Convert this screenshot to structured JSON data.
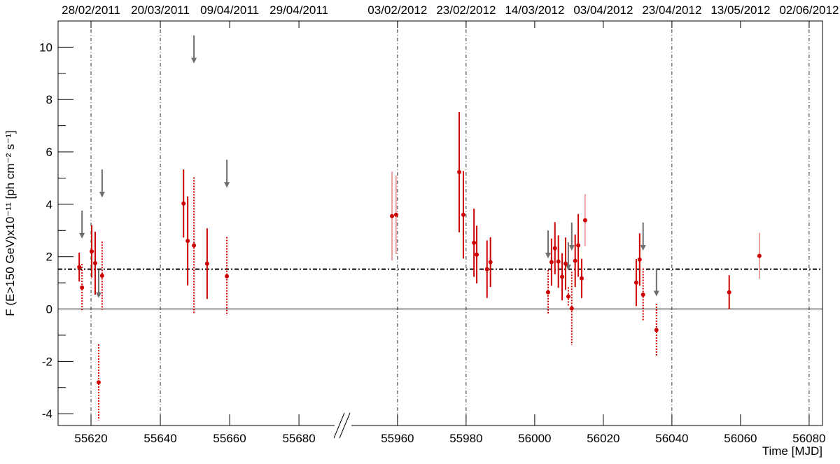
{
  "chart_data": {
    "type": "errorbar",
    "y_label": "F (E>150 GeV)x10⁻¹¹ [ph cm⁻² s⁻¹]",
    "x_label": "Time [MJD]",
    "xlim": [
      [
        55610.5,
        55692.1
      ],
      [
        55943.5,
        56083.9
      ]
    ],
    "xticks": [
      55620,
      55640,
      55660,
      55680,
      55960,
      55980,
      56000,
      56020,
      56040,
      56060,
      56080
    ],
    "ylim": [
      -4.45,
      11
    ],
    "yticks": [
      -4,
      -2,
      0,
      2,
      4,
      6,
      8,
      10
    ],
    "top_ticks": [
      {
        "value": 55620,
        "label": "28/02/2011"
      },
      {
        "value": 55640,
        "label": "20/03/2011"
      },
      {
        "value": 55660,
        "label": "09/04/2011"
      },
      {
        "value": 55680,
        "label": "29/04/2011"
      },
      {
        "value": 55960,
        "label": "03/02/2012"
      },
      {
        "value": 55980,
        "label": "23/02/2012"
      },
      {
        "value": 56000,
        "label": "14/03/2012"
      },
      {
        "value": 56020,
        "label": "03/04/2012"
      },
      {
        "value": 56040,
        "label": "23/04/2012"
      },
      {
        "value": 56060,
        "label": "13/05/2012"
      },
      {
        "value": 56080,
        "label": "02/06/2012"
      }
    ],
    "date_lines": [
      55620,
      55640,
      55960,
      55980,
      56040,
      56080
    ],
    "reference_line": 1.52,
    "points": {
      "color": "#cc0000",
      "x": [
        55616.6,
        55617.4,
        55620.2,
        55621.2,
        55622.2,
        55623.2,
        55646.7,
        55647.9,
        55649.7,
        55653.5,
        55659.2,
        55958.4,
        55959.6,
        55978.0,
        55979.2,
        55982.3,
        55983.1,
        55986.1,
        55987.1,
        56003.9,
        56004.9,
        56005.9,
        56006.9,
        56008.0,
        56009.0,
        56009.8,
        56010.8,
        56011.8,
        56012.7,
        56013.7,
        56014.7,
        56029.6,
        56030.6,
        56031.6,
        56035.5,
        56056.7,
        56065.5
      ],
      "values": [
        1.6,
        0.82,
        2.2,
        1.75,
        -2.8,
        1.27,
        4.03,
        2.6,
        2.43,
        1.73,
        1.25,
        3.55,
        3.6,
        5.23,
        3.6,
        2.53,
        2.08,
        1.52,
        1.79,
        0.64,
        1.79,
        2.32,
        1.81,
        1.23,
        1.73,
        0.48,
        0.02,
        1.84,
        2.43,
        1.17,
        3.39,
        1.01,
        1.89,
        0.55,
        -0.8,
        0.64,
        2.03
      ],
      "errors": [
        0.55,
        0.9,
        1.0,
        1.2,
        1.45,
        1.3,
        1.3,
        1.7,
        2.6,
        1.35,
        1.5,
        1.7,
        1.5,
        2.3,
        1.67,
        1.3,
        1.1,
        1.1,
        0.95,
        0.85,
        0.9,
        1.0,
        1.0,
        0.9,
        1.0,
        0.35,
        1.4,
        1.0,
        1.2,
        0.75,
        1.0,
        0.9,
        1.0,
        1.0,
        1.0,
        0.65,
        0.88
      ],
      "error_style": [
        "solid",
        "dotted",
        "solid",
        "solid",
        "dotted",
        "dotted",
        "solid",
        "solid",
        "dotted",
        "solid",
        "dotted",
        "thin",
        "thin",
        "solid",
        "solid",
        "solid",
        "solid",
        "solid",
        "solid",
        "dotted",
        "solid",
        "solid",
        "solid",
        "solid",
        "solid",
        "dotted",
        "dotted",
        "solid",
        "solid",
        "solid",
        "thin",
        "solid",
        "solid",
        "dotted",
        "dotted",
        "solid",
        "thin"
      ]
    },
    "upper_limits": {
      "color": "#6e6e6e",
      "x": [
        55617.4,
        55622.2,
        55623.2,
        55649.7,
        55659.2,
        56003.9,
        56009.8,
        56010.8,
        56031.6,
        56035.5
      ],
      "values": [
        3.76,
        1.49,
        5.33,
        10.45,
        5.7,
        3.0,
        2.55,
        3.3,
        3.3,
        1.55
      ]
    }
  }
}
